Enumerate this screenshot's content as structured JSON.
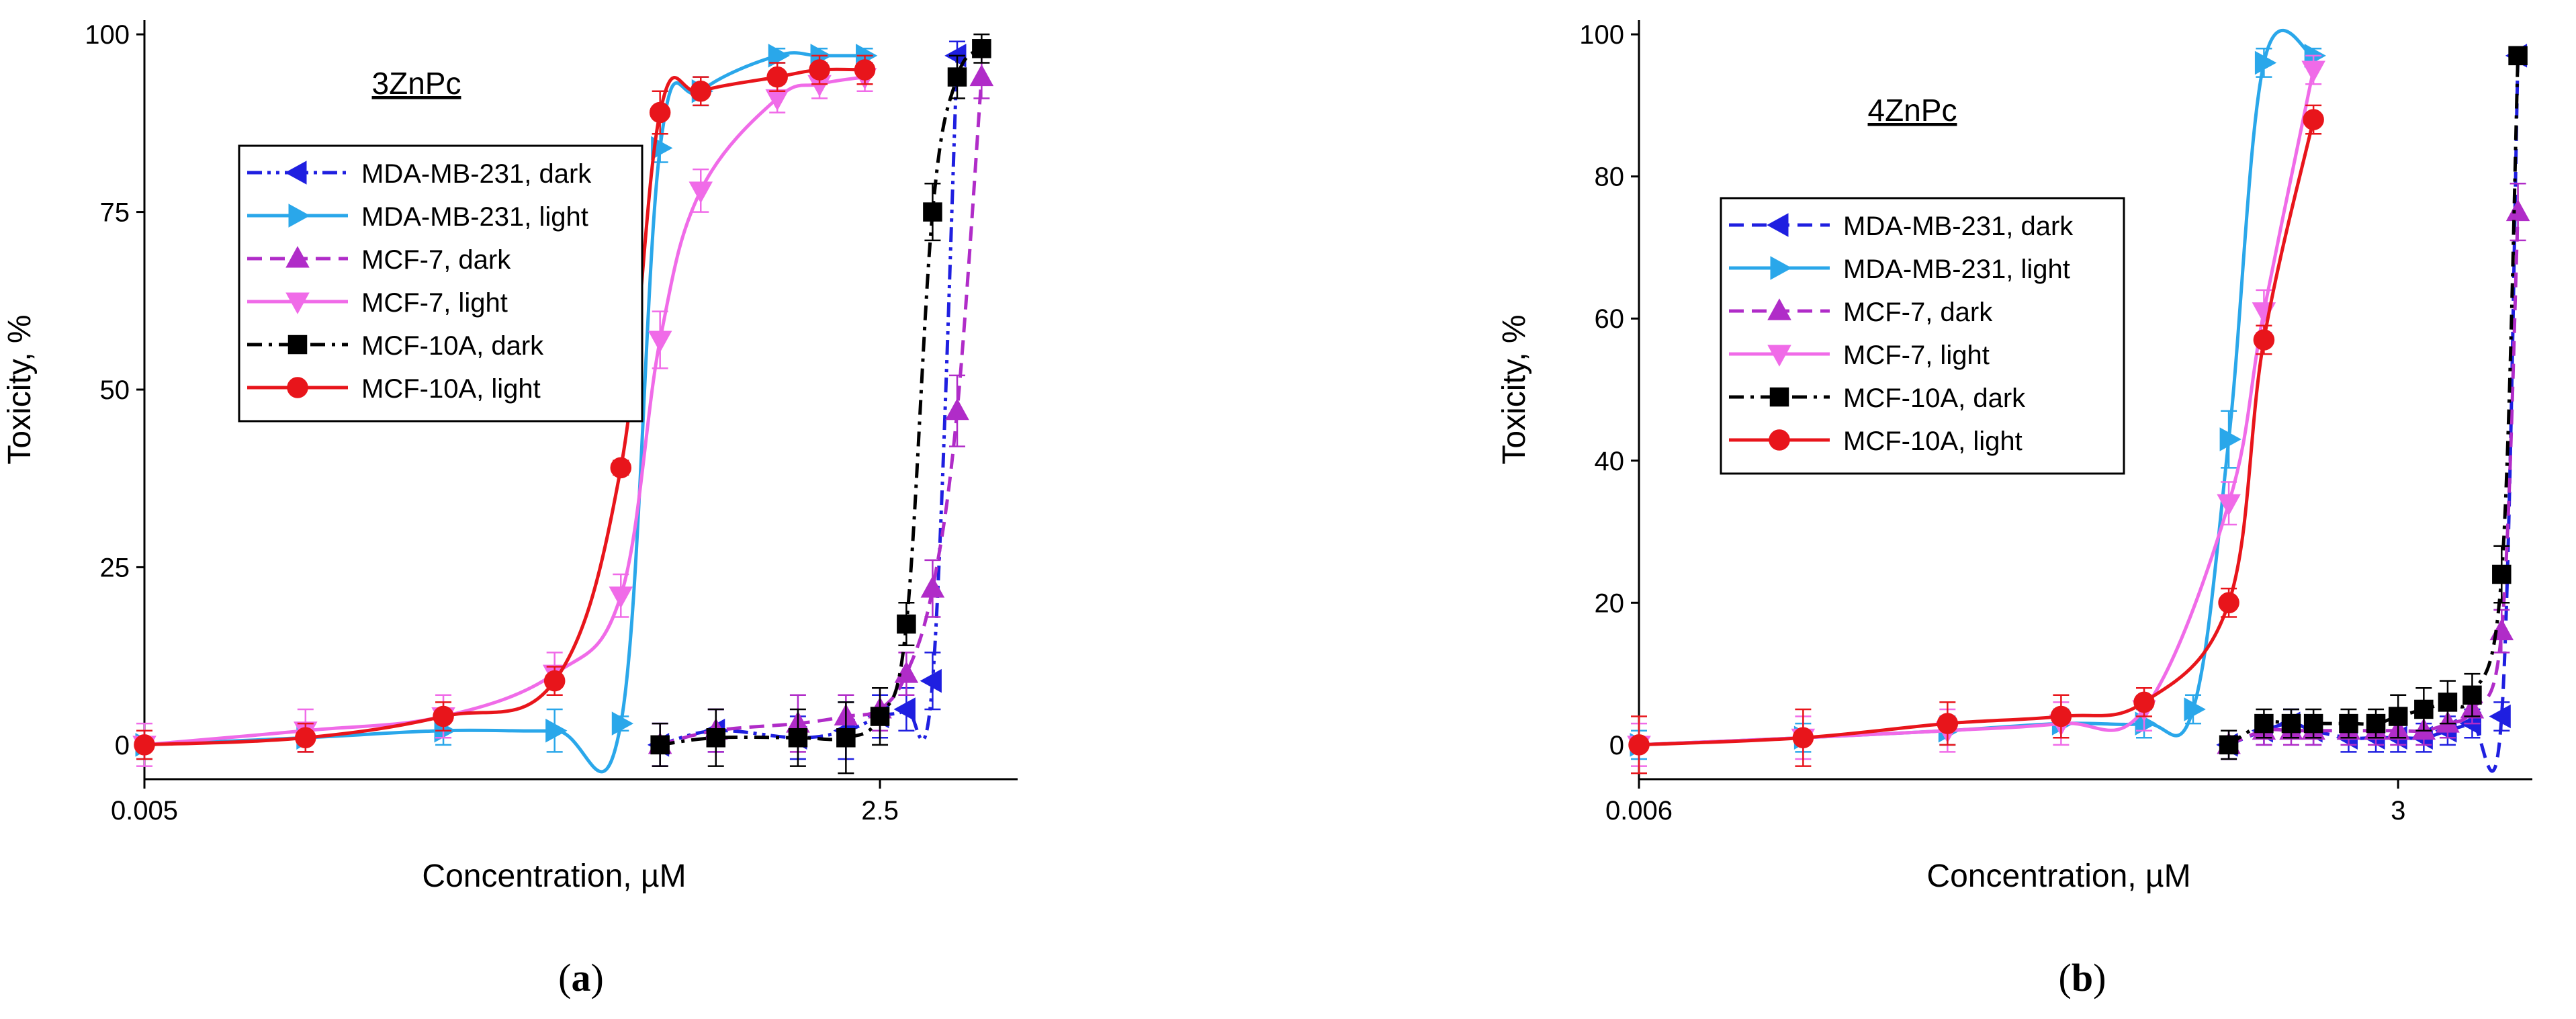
{
  "chart_data": [
    {
      "type": "line",
      "panel_label": "a",
      "title": "3ZnPc",
      "xlabel": "Concentration, µM",
      "ylabel": "Toxicity, %",
      "x_scale": "log",
      "xlim": [
        0.005,
        8.0
      ],
      "ylim": [
        -2,
        102
      ],
      "x_ticks": [
        {
          "value": 0.005,
          "label": "0.005"
        },
        {
          "value": 2.5,
          "label": "2.5"
        }
      ],
      "y_ticks": [
        0,
        25,
        50,
        75,
        100
      ],
      "legend_location": "upper-left",
      "series": [
        {
          "name": "MDA-MB-231, dark",
          "color": "#1f1fe0",
          "marker": "triangle-left",
          "linestyle": "dashdotdot",
          "x": [
            0.39,
            0.625,
            1.25,
            1.875,
            2.5,
            3.125,
            3.9,
            4.8
          ],
          "y": [
            0,
            2,
            1,
            2,
            4,
            5,
            9,
            97
          ],
          "err": [
            3,
            3,
            3,
            4,
            3,
            3,
            4,
            2
          ]
        },
        {
          "name": "MDA-MB-231, light",
          "color": "#2aa7ea",
          "marker": "triangle-right",
          "linestyle": "solid",
          "x": [
            0.005,
            0.0195,
            0.0625,
            0.16,
            0.28,
            0.39,
            0.55,
            1.05,
            1.5,
            2.2
          ],
          "y": [
            0,
            1,
            2,
            2,
            3,
            84,
            92,
            97,
            97,
            97
          ],
          "err": [
            2,
            2,
            2,
            3,
            1,
            2,
            2,
            1,
            1,
            1
          ]
        },
        {
          "name": "MCF-7, dark",
          "color": "#b02cc8",
          "marker": "triangle-up",
          "linestyle": "dashed",
          "x": [
            0.39,
            0.625,
            1.25,
            1.875,
            2.5,
            3.125,
            3.9,
            4.8,
            5.9
          ],
          "y": [
            0,
            2,
            3,
            4,
            5,
            10,
            22,
            47,
            94
          ],
          "err": [
            3,
            3,
            4,
            3,
            3,
            3,
            4,
            5,
            3
          ]
        },
        {
          "name": "MCF-7, light",
          "color": "#f06be8",
          "marker": "triangle-down",
          "linestyle": "solid",
          "x": [
            0.005,
            0.0195,
            0.0625,
            0.16,
            0.28,
            0.39,
            0.55,
            1.05,
            1.5,
            2.2
          ],
          "y": [
            0,
            2,
            4,
            10,
            21,
            57,
            78,
            91,
            93,
            94
          ],
          "err": [
            3,
            3,
            3,
            3,
            3,
            4,
            3,
            2,
            2,
            2
          ]
        },
        {
          "name": "MCF-10A, dark",
          "color": "#000000",
          "marker": "square",
          "linestyle": "dashdot",
          "x": [
            0.39,
            0.625,
            1.25,
            1.875,
            2.5,
            3.125,
            3.9,
            4.8,
            5.9
          ],
          "y": [
            0,
            1,
            1,
            1,
            4,
            17,
            75,
            94,
            98
          ],
          "err": [
            3,
            4,
            4,
            5,
            4,
            3,
            4,
            3,
            2
          ]
        },
        {
          "name": "MCF-10A, light",
          "color": "#e8151b",
          "marker": "circle",
          "linestyle": "solid",
          "x": [
            0.005,
            0.0195,
            0.0625,
            0.16,
            0.28,
            0.39,
            0.55,
            1.05,
            1.5,
            2.2
          ],
          "y": [
            0,
            1,
            4,
            9,
            39,
            89,
            92,
            94,
            95,
            95
          ],
          "err": [
            2,
            2,
            2,
            2,
            1,
            3,
            2,
            2,
            2,
            2
          ]
        }
      ]
    },
    {
      "type": "line",
      "panel_label": "b",
      "title": "4ZnPc",
      "xlabel": "Concentration, µM",
      "ylabel": "Toxicity, %",
      "x_scale": "log",
      "xlim": [
        0.006,
        9.0
      ],
      "ylim": [
        -2,
        102
      ],
      "x_ticks": [
        {
          "value": 0.006,
          "label": "0.006"
        },
        {
          "value": 3,
          "label": "3"
        }
      ],
      "y_ticks": [
        0,
        20,
        40,
        60,
        80,
        100
      ],
      "legend_location": "upper-left",
      "series": [
        {
          "name": "MDA-MB-231, dark",
          "color": "#1f1fe0",
          "marker": "triangle-left",
          "linestyle": "dashed",
          "x": [
            0.75,
            1.0,
            1.25,
            1.5,
            2.0,
            2.5,
            3.0,
            3.7,
            4.5,
            5.5,
            7.0,
            8.0
          ],
          "y": [
            0,
            2,
            3,
            2,
            1,
            1,
            1,
            1,
            2,
            3,
            4,
            97
          ],
          "err": [
            2,
            2,
            2,
            2,
            2,
            2,
            2,
            2,
            2,
            2,
            2,
            1
          ]
        },
        {
          "name": "MDA-MB-231, light",
          "color": "#2aa7ea",
          "marker": "triangle-right",
          "linestyle": "solid",
          "x": [
            0.006,
            0.023,
            0.075,
            0.19,
            0.375,
            0.56,
            0.75,
            1.0,
            1.5
          ],
          "y": [
            0,
            1,
            2,
            3,
            3,
            5,
            43,
            96,
            97
          ],
          "err": [
            2,
            2,
            2,
            2,
            2,
            2,
            4,
            2,
            1
          ]
        },
        {
          "name": "MCF-7, dark",
          "color": "#b02cc8",
          "marker": "triangle-up",
          "linestyle": "dashed",
          "x": [
            0.75,
            1.0,
            1.25,
            1.5,
            2.0,
            2.5,
            3.0,
            3.7,
            4.5,
            5.5,
            7.0,
            8.0
          ],
          "y": [
            0,
            2,
            2,
            2,
            2,
            2,
            2,
            2,
            3,
            5,
            16,
            75
          ],
          "err": [
            2,
            2,
            2,
            2,
            2,
            2,
            2,
            2,
            2,
            2,
            3,
            4
          ]
        },
        {
          "name": "MCF-7, light",
          "color": "#f06be8",
          "marker": "triangle-down",
          "linestyle": "solid",
          "x": [
            0.006,
            0.023,
            0.075,
            0.19,
            0.375,
            0.75,
            1.0,
            1.5
          ],
          "y": [
            0,
            1,
            2,
            3,
            5,
            34,
            61,
            95
          ],
          "err": [
            3,
            3,
            3,
            3,
            3,
            3,
            3,
            2
          ]
        },
        {
          "name": "MCF-10A, dark",
          "color": "#000000",
          "marker": "square",
          "linestyle": "dashdot",
          "x": [
            0.75,
            1.0,
            1.25,
            1.5,
            2.0,
            2.5,
            3.0,
            3.7,
            4.5,
            5.5,
            7.0,
            8.0
          ],
          "y": [
            0,
            3,
            3,
            3,
            3,
            3,
            4,
            5,
            6,
            7,
            24,
            97
          ],
          "err": [
            2,
            2,
            2,
            2,
            2,
            2,
            3,
            3,
            3,
            3,
            4,
            1
          ]
        },
        {
          "name": "MCF-10A, light",
          "color": "#e8151b",
          "marker": "circle",
          "linestyle": "solid",
          "x": [
            0.006,
            0.023,
            0.075,
            0.19,
            0.375,
            0.75,
            1.0,
            1.5
          ],
          "y": [
            0,
            1,
            3,
            4,
            6,
            20,
            57,
            88
          ],
          "err": [
            4,
            4,
            3,
            3,
            2,
            2,
            2,
            2
          ]
        }
      ]
    }
  ]
}
